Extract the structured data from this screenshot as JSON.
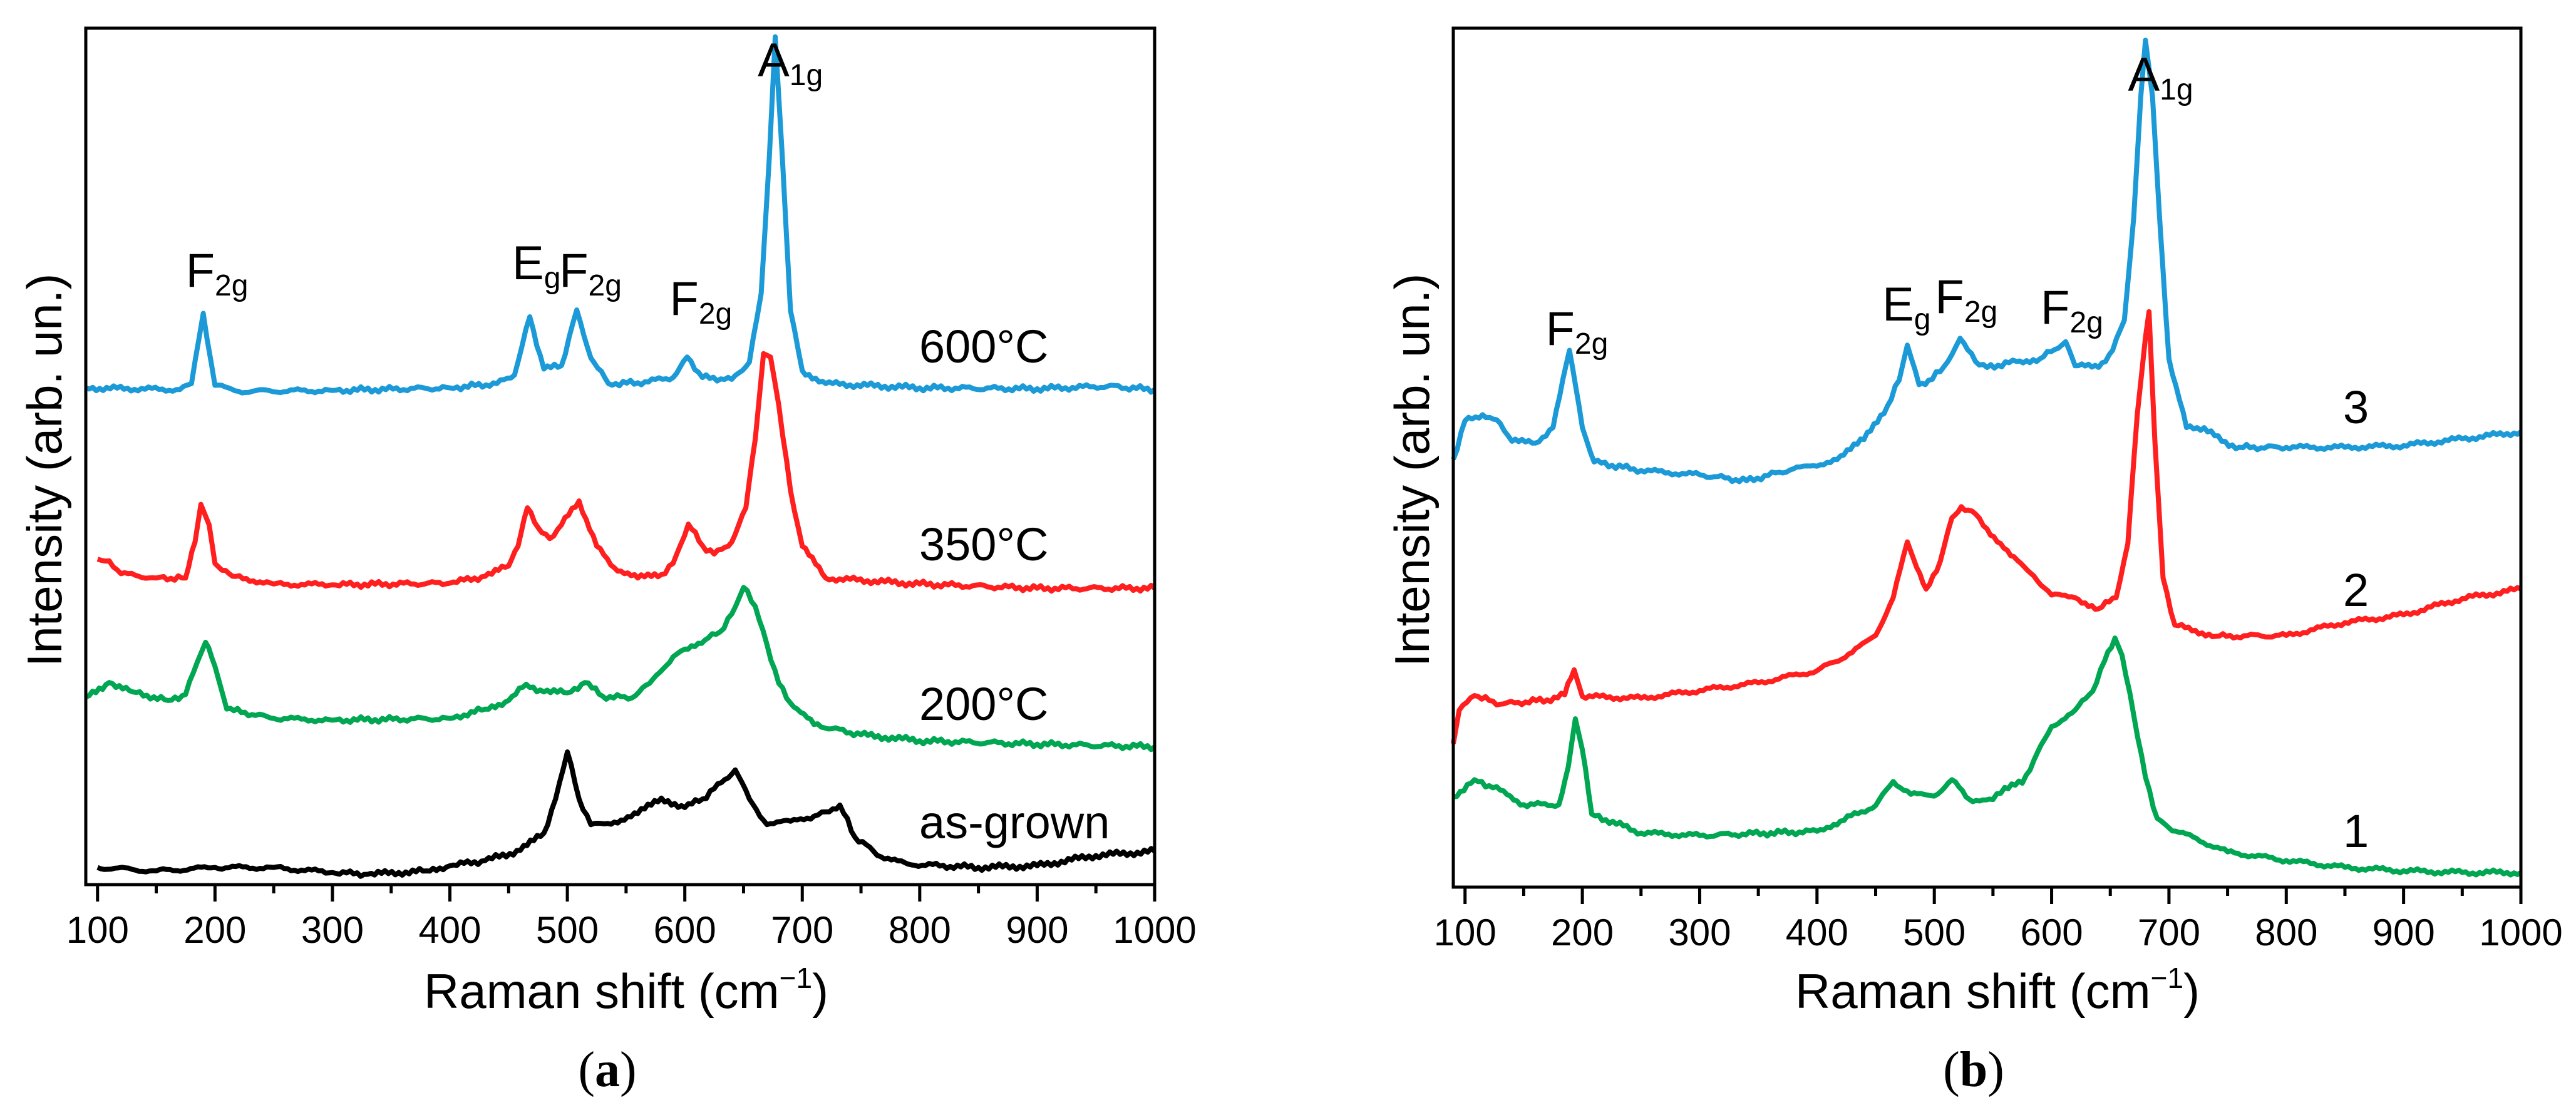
{
  "chart_data": [
    {
      "type": "line",
      "panel_label": {
        "open": "(",
        "letter": "a",
        "close": ")"
      },
      "xlabel": {
        "main": "Raman shift (cm",
        "sup": "−1",
        "close": ")"
      },
      "ylabel": "Intensity (arb. un.)",
      "xlim": [
        90,
        1000
      ],
      "ylim": [
        0,
        100
      ],
      "y_units": "arbitrary (offset traces)",
      "x_ticks": [
        100,
        200,
        300,
        400,
        500,
        600,
        700,
        800,
        900,
        1000
      ],
      "x_minor_step": 50,
      "y_ticks_shown": false,
      "grid": false,
      "peak_labels": [
        {
          "main": "F",
          "sub": "2g",
          "x": 190
        },
        {
          "main": "E",
          "sub": "g",
          "x": 468
        },
        {
          "main": "F",
          "sub": "2g",
          "x": 508
        },
        {
          "main": "F",
          "sub": "2g",
          "x": 602
        },
        {
          "main": "A",
          "sub": "1g",
          "x": 677
        }
      ],
      "series": [
        {
          "name": "600°C",
          "color": "#1b9ad7",
          "x": [
            90,
            170,
            180,
            190,
            200,
            220,
            300,
            400,
            440,
            455,
            468,
            480,
            495,
            508,
            520,
            535,
            560,
            590,
            602,
            615,
            640,
            655,
            665,
            672,
            677,
            683,
            690,
            700,
            720,
            800,
            900,
            960,
            1000
          ],
          "y": [
            58.0,
            57.8,
            58.5,
            66.7,
            58.3,
            57.6,
            57.7,
            58.0,
            58.5,
            59.5,
            66.3,
            60.2,
            60.6,
            67.1,
            61.5,
            58.5,
            58.6,
            59.2,
            61.6,
            59.2,
            59.0,
            61,
            69,
            85,
            99.0,
            85,
            67,
            60,
            58.5,
            58.0,
            57.9,
            58.2,
            57.8
          ]
        },
        {
          "name": "350°C",
          "color": "#ff1f1f",
          "x": [
            100,
            110,
            120,
            150,
            175,
            183,
            188,
            195,
            200,
            215,
            250,
            300,
            400,
            430,
            450,
            458,
            466,
            475,
            485,
            495,
            510,
            525,
            540,
            560,
            580,
            590,
            603,
            615,
            625,
            640,
            652,
            660,
            667,
            673,
            680,
            690,
            700,
            720,
            800,
            900,
            1000
          ],
          "y": [
            38.0,
            37.8,
            36.3,
            35.8,
            35.8,
            40,
            44.4,
            42,
            37.5,
            36.0,
            35.1,
            35.0,
            35.2,
            36,
            37.2,
            39.5,
            44.0,
            41.7,
            40.4,
            42,
            44.8,
            39.5,
            37,
            35.8,
            36.2,
            37.5,
            42.1,
            39.6,
            38.6,
            40,
            44,
            52,
            62,
            61.6,
            56,
            46,
            39.5,
            35.8,
            35.1,
            34.6,
            34.6
          ]
        },
        {
          "name": "200°C",
          "color": "#00a651",
          "x": [
            90,
            110,
            130,
            160,
            175,
            185,
            192,
            200,
            210,
            250,
            300,
            400,
            430,
            450,
            465,
            480,
            500,
            515,
            530,
            555,
            570,
            590,
            600,
            620,
            630,
            640,
            650,
            660,
            670,
            680,
            690,
            710,
            750,
            800,
            900,
            1000
          ],
          "y": [
            21.9,
            23.6,
            22.5,
            21.5,
            22.2,
            26,
            28.3,
            25.5,
            20.5,
            19.4,
            19.2,
            19.4,
            20.5,
            21.5,
            23.4,
            22.5,
            22.4,
            23.6,
            22,
            21.8,
            23.5,
            26.6,
            27.5,
            28.8,
            29.5,
            31.6,
            34.7,
            32.5,
            28,
            23.5,
            21.2,
            18.7,
            17.5,
            16.8,
            16.4,
            16.1
          ]
        },
        {
          "name": "as-grown",
          "color": "#000000",
          "x": [
            100,
            150,
            200,
            250,
            300,
            330,
            380,
            400,
            430,
            460,
            480,
            490,
            500,
            510,
            520,
            540,
            560,
            580,
            600,
            615,
            625,
            643,
            655,
            670,
            690,
            710,
            720,
            732,
            745,
            770,
            790,
            850,
            900,
            950,
            1000
          ],
          "y": [
            2.0,
            1.6,
            2.0,
            2.0,
            1.4,
            1.2,
            1.6,
            2.2,
            2.8,
            4.0,
            6.0,
            10,
            15.5,
            10,
            7.0,
            7.3,
            8.3,
            10.1,
            9.0,
            10.0,
            11.2,
            13.4,
            10,
            7.0,
            7.4,
            8.0,
            8.5,
            9.3,
            5.5,
            3.0,
            2.4,
            2.0,
            2.2,
            3.4,
            3.9
          ]
        }
      ]
    },
    {
      "type": "line",
      "panel_label": {
        "open": "(",
        "letter": "b",
        "close": ")"
      },
      "xlabel": {
        "main": "Raman shift (cm",
        "sup": "−1",
        "close": ")"
      },
      "ylabel": "Intensity (arb. un.)",
      "xlim": [
        90,
        1000
      ],
      "ylim": [
        0,
        100
      ],
      "y_units": "arbitrary (offset traces)",
      "x_ticks": [
        100,
        200,
        300,
        400,
        500,
        600,
        700,
        800,
        900,
        1000
      ],
      "x_minor_step": 50,
      "y_ticks_shown": false,
      "grid": false,
      "peak_labels": [
        {
          "main": "F",
          "sub": "2g",
          "x": 189
        },
        {
          "main": "E",
          "sub": "g",
          "x": 477
        },
        {
          "main": "F",
          "sub": "2g",
          "x": 522
        },
        {
          "main": "F",
          "sub": "2g",
          "x": 612
        },
        {
          "main": "A",
          "sub": "1g",
          "x": 680
        }
      ],
      "series": [
        {
          "name": "3",
          "color": "#1b9ad7",
          "x": [
            90,
            100,
            115,
            130,
            140,
            160,
            175,
            189,
            200,
            210,
            250,
            300,
            340,
            380,
            400,
            420,
            440,
            460,
            470,
            477,
            487,
            495,
            505,
            515,
            522,
            535,
            545,
            570,
            590,
            612,
            620,
            640,
            652,
            662,
            670,
            676,
            680,
            686,
            692,
            700,
            715,
            730,
            745,
            760,
            800,
            850,
            900,
            950,
            1000
          ],
          "y": [
            49.8,
            54.3,
            55,
            54,
            51.9,
            51.7,
            53.5,
            62.5,
            53.5,
            49.5,
            48.5,
            48.0,
            47.3,
            48.7,
            49.0,
            50.2,
            52.1,
            56,
            59,
            63.1,
            58.5,
            59.0,
            60.0,
            62,
            63.9,
            61.2,
            60.5,
            61.2,
            61.5,
            63.5,
            60.7,
            60.5,
            62.5,
            66,
            78,
            92,
            98.6,
            92,
            78,
            61.5,
            53.5,
            53.5,
            51.9,
            51.2,
            51.2,
            51.2,
            51.4,
            52.2,
            53.0
          ]
        },
        {
          "name": "2",
          "color": "#ff1f1f",
          "x": [
            90,
            95,
            108,
            130,
            170,
            185,
            193,
            200,
            250,
            300,
            350,
            400,
            430,
            450,
            465,
            477,
            485,
            493,
            505,
            515,
            523,
            532,
            545,
            565,
            585,
            600,
            620,
            640,
            655,
            665,
            673,
            680,
            683,
            688,
            695,
            705,
            740,
            800,
            850,
            900,
            950,
            1000
          ],
          "y": [
            16.7,
            20.6,
            22.3,
            21.3,
            21.8,
            22.4,
            25.3,
            22.2,
            22.0,
            22.9,
            23.8,
            25.2,
            27.3,
            29.3,
            33.7,
            40.2,
            37.2,
            34.7,
            37.9,
            43,
            44.3,
            43.8,
            41.7,
            38.6,
            36.2,
            34,
            33.7,
            32.4,
            33.7,
            40,
            55,
            64,
            67.0,
            52,
            36,
            30.5,
            29.2,
            29.3,
            30.8,
            31.7,
            33.6,
            34.7
          ]
        },
        {
          "name": "1",
          "color": "#00a651",
          "x": [
            90,
            108,
            130,
            150,
            180,
            188,
            194,
            200,
            208,
            250,
            300,
            400,
            420,
            450,
            465,
            480,
            500,
            515,
            530,
            550,
            560,
            575,
            585,
            600,
            620,
            635,
            645,
            654,
            660,
            670,
            680,
            690,
            700,
            750,
            800,
            850,
            900,
            950,
            1000
          ],
          "y": [
            10.5,
            12.5,
            11.3,
            9.6,
            9.6,
            14,
            19.6,
            16,
            8.5,
            6.3,
            6.0,
            6.5,
            7.7,
            9.5,
            12.3,
            10.8,
            10.6,
            12.5,
            10.2,
            10.2,
            11.6,
            12.1,
            14.8,
            18.7,
            20.6,
            22.8,
            26.3,
            29.0,
            27,
            20,
            12.8,
            8,
            6.9,
            4.1,
            3.1,
            2.3,
            1.9,
            1.7,
            1.7
          ]
        }
      ]
    }
  ]
}
